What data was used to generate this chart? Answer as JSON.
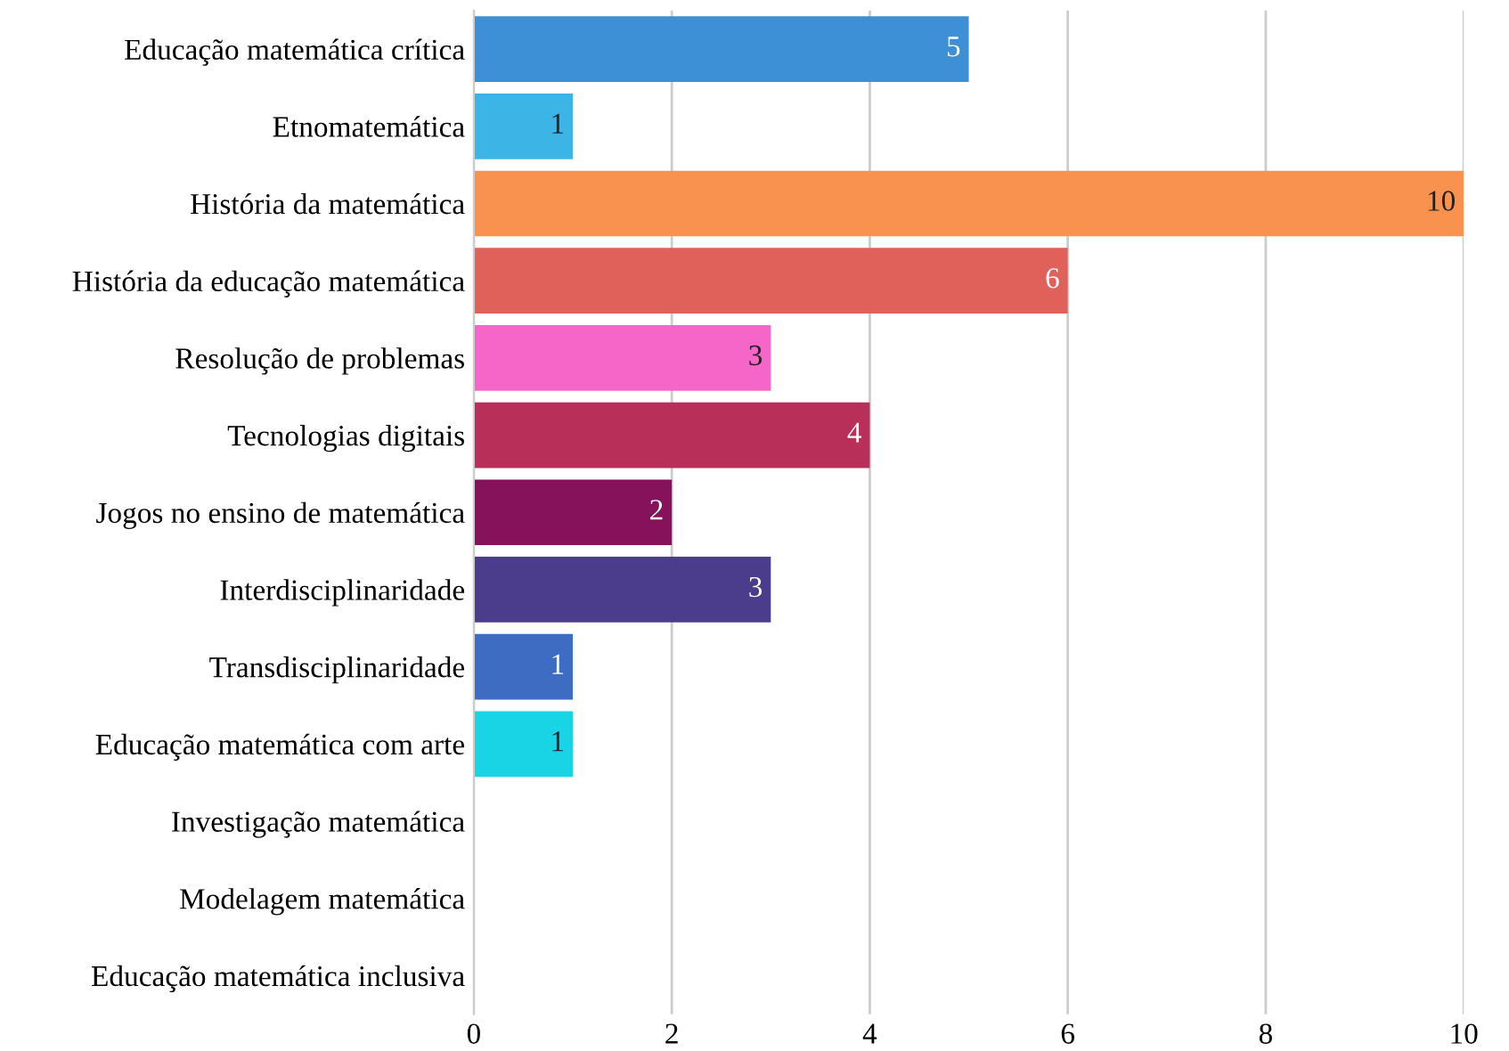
{
  "chart_data": {
    "type": "bar",
    "orientation": "horizontal",
    "categories": [
      "Educação matemática crítica",
      "Etnomatemática",
      "História da matemática",
      "História da educação matemática",
      "Resolução de problemas",
      "Tecnologias digitais",
      "Jogos no ensino de matemática",
      "Interdisciplinaridade",
      "Transdisciplinaridade",
      "Educação matemática com arte",
      "Investigação matemática",
      "Modelagem matemática",
      "Educação matemática inclusiva"
    ],
    "values": [
      5,
      1,
      10,
      6,
      3,
      4,
      2,
      3,
      1,
      1,
      0,
      0,
      0
    ],
    "value_labels": [
      "5",
      "1",
      "10",
      "6",
      "3",
      "4",
      "2",
      "3",
      "1",
      "1",
      null,
      null,
      null
    ],
    "colors": [
      "#3d8fd6",
      "#3cb5e6",
      "#f9914f",
      "#e0605a",
      "#f566c8",
      "#b8305a",
      "#85125a",
      "#4b3c8c",
      "#3d6cc2",
      "#19d4e4",
      "#cccccc",
      "#cccccc",
      "#cccccc"
    ],
    "xlim": [
      0,
      10
    ],
    "xticks": [
      0,
      2,
      4,
      6,
      8,
      10
    ],
    "grid": "x"
  }
}
